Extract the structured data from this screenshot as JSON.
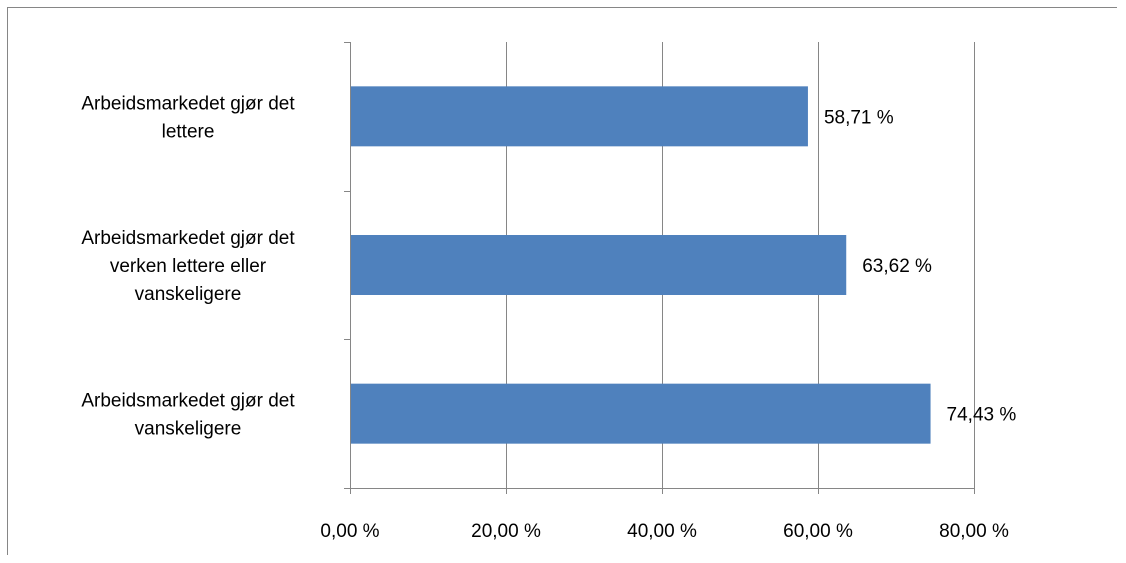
{
  "chart_data": {
    "type": "bar",
    "orientation": "horizontal",
    "categories": [
      "Arbeidsmarkedet gjør det lettere",
      "Arbeidsmarkedet gjør det verken lettere eller vanskeligere",
      "Arbeidsmarkedet gjør det vanskeligere"
    ],
    "category_lines": [
      [
        "Arbeidsmarkedet gjør det",
        "lettere"
      ],
      [
        "Arbeidsmarkedet gjør det",
        "verken lettere eller",
        "vanskeligere"
      ],
      [
        "Arbeidsmarkedet gjør det",
        "vanskeligere"
      ]
    ],
    "values": [
      58.71,
      63.62,
      74.43
    ],
    "value_labels": [
      "58,71 %",
      "63,62 %",
      "74,43 %"
    ],
    "xlim": [
      0,
      80
    ],
    "x_ticks": [
      0,
      20,
      40,
      60,
      80
    ],
    "x_tick_labels": [
      "0,00 %",
      "20,00 %",
      "40,00 %",
      "60,00 %",
      "80,00 %"
    ],
    "title": "",
    "xlabel": "",
    "ylabel": "",
    "grid": "vertical",
    "legend": "none",
    "colors": {
      "bar": "#4F81BD",
      "grid": "#868686",
      "axis": "#868686",
      "text": "#000000"
    }
  }
}
